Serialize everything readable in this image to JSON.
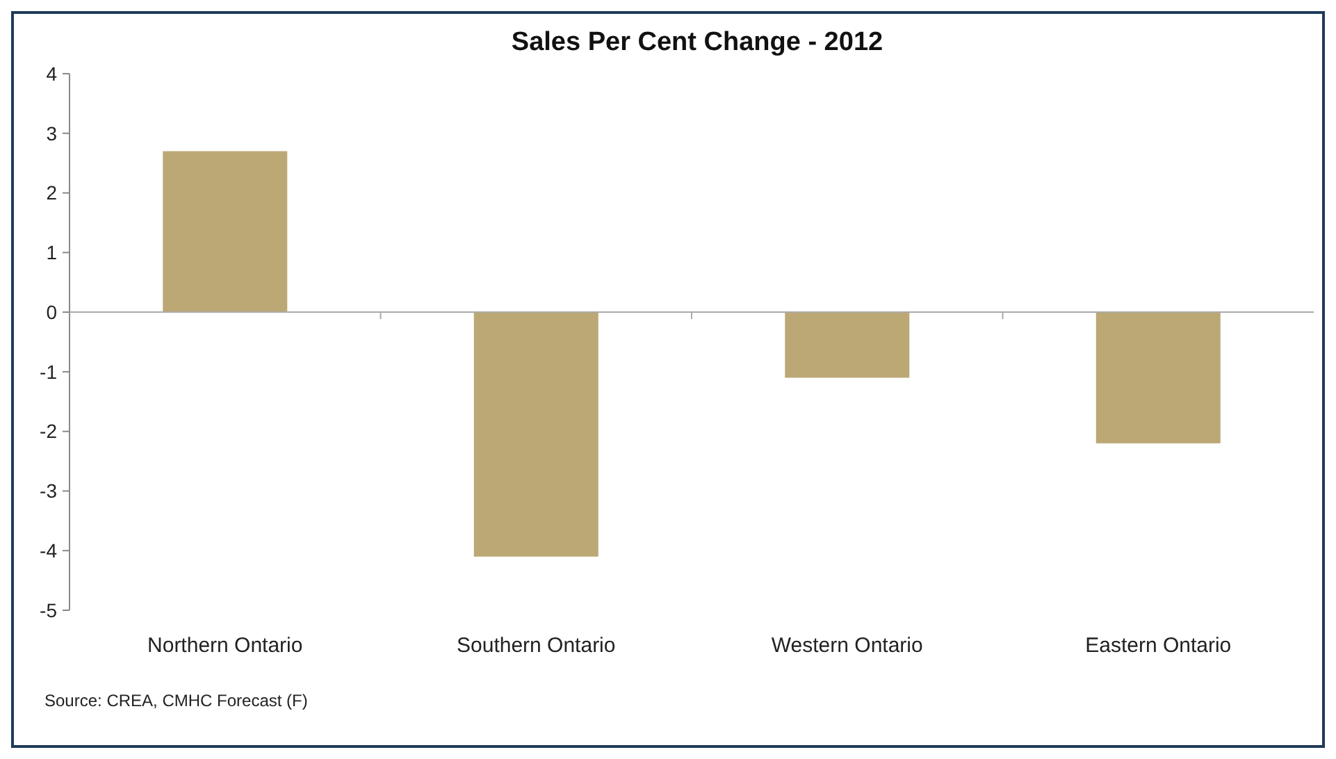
{
  "chart_data": {
    "type": "bar",
    "title": "Sales Per Cent Change - 2012",
    "categories": [
      "Northern Ontario",
      "Southern Ontario",
      "Western Ontario",
      "Eastern Ontario"
    ],
    "values": [
      2.7,
      -4.1,
      -1.1,
      -2.2
    ],
    "color": "#bca874",
    "ylim": [
      -5,
      4
    ],
    "yticks": [
      -5,
      -4,
      -3,
      -2,
      -1,
      0,
      1,
      2,
      3,
      4
    ],
    "annotations": [
      "Source: CREA, CMHC Forecast (F)"
    ]
  }
}
